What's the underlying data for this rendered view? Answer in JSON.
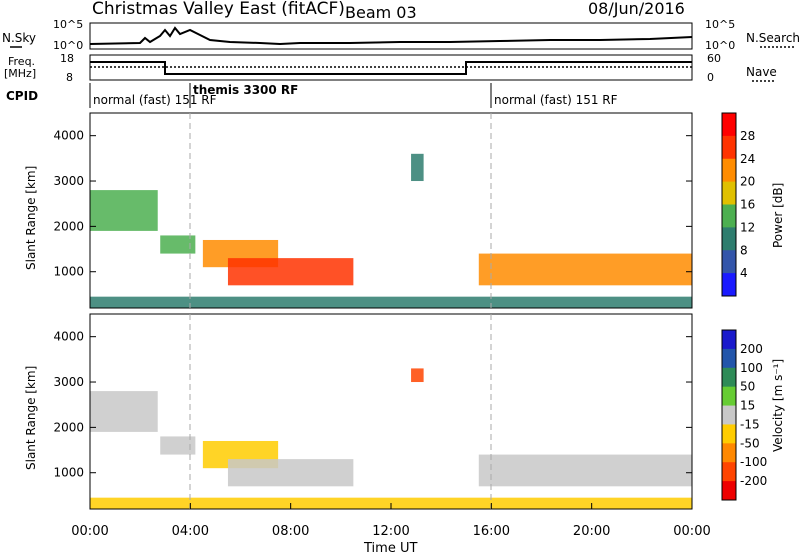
{
  "header": {
    "title": "Christmas Valley East (fitACF)",
    "beam": "Beam 03",
    "date": "08/Jun/2016"
  },
  "panels": {
    "nsky": {
      "label": "N.Sky",
      "ticks": [
        "10^5",
        "10^0"
      ],
      "right_ticks": [
        "10^5",
        "10^0"
      ],
      "right_label": "N.Search"
    },
    "freq": {
      "label_line1": "Freq.",
      "label_line2": "[MHz]",
      "ticks": [
        "18",
        "8"
      ],
      "right_ticks": [
        "60",
        "0"
      ],
      "right_label": "Nave"
    },
    "cpid": {
      "label": "CPID",
      "segments": [
        {
          "label": "normal (fast) 151 RF",
          "start_hour": 0
        },
        {
          "label": "themis 3300 RF",
          "start_hour": 4.0
        },
        {
          "label": "normal (fast) 151 RF",
          "start_hour": 16.0
        }
      ]
    }
  },
  "axes": {
    "ylabel": "Slant Range [km]",
    "xlabel": "Time UT",
    "xticks": [
      "00:00",
      "04:00",
      "08:00",
      "12:00",
      "16:00",
      "20:00",
      "00:00"
    ],
    "yticks": [
      "1000",
      "2000",
      "3000",
      "4000"
    ]
  },
  "colorbars": {
    "power": {
      "label": "Power [dB]",
      "ticks": [
        "4",
        "8",
        "12",
        "16",
        "20",
        "24",
        "28"
      ],
      "colors": [
        "#1a1aff",
        "#3355aa",
        "#2e7d6e",
        "#4caf50",
        "#e0c000",
        "#ff8c00",
        "#ff3300",
        "#ff0000"
      ]
    },
    "velocity": {
      "label": "Velocity [m s⁻¹]",
      "ticks": [
        "200",
        "100",
        "50",
        "15",
        "-15",
        "-50",
        "-100",
        "-200"
      ],
      "colors": [
        "#1a1acc",
        "#2255aa",
        "#2e8b57",
        "#66cc33",
        "#c8c8c8",
        "#ffcc00",
        "#ff8800",
        "#ff4400",
        "#ee0000"
      ]
    }
  },
  "chart_data": [
    {
      "type": "heatmap",
      "title": "Power",
      "xlabel": "Time UT",
      "ylabel": "Slant Range [km]",
      "xlim": [
        0,
        24
      ],
      "ylim": [
        200,
        4500
      ],
      "colorbar_label": "Power [dB]",
      "regions": [
        {
          "t0": 0.0,
          "t1": 2.7,
          "r0": 1900,
          "r1": 2800,
          "value": 14
        },
        {
          "t0": 2.8,
          "t1": 4.2,
          "r0": 1400,
          "r1": 1800,
          "value": 16
        },
        {
          "t0": 4.5,
          "t1": 7.5,
          "r0": 1100,
          "r1": 1700,
          "value": 22
        },
        {
          "t0": 5.5,
          "t1": 10.5,
          "r0": 700,
          "r1": 1300,
          "value": 26
        },
        {
          "t0": 15.5,
          "t1": 24.0,
          "r0": 700,
          "r1": 1400,
          "value": 24
        },
        {
          "t0": 0.0,
          "t1": 24.0,
          "r0": 200,
          "r1": 450,
          "value": 12
        },
        {
          "t0": 12.8,
          "t1": 13.3,
          "r0": 3000,
          "r1": 3600,
          "value": 10
        }
      ]
    },
    {
      "type": "heatmap",
      "title": "Velocity",
      "xlabel": "Time UT",
      "ylabel": "Slant Range [km]",
      "xlim": [
        0,
        24
      ],
      "ylim": [
        200,
        4500
      ],
      "colorbar_label": "Velocity [m s-1]",
      "regions": [
        {
          "t0": 0.0,
          "t1": 2.7,
          "r0": 1900,
          "r1": 2800,
          "value": 0
        },
        {
          "t0": 2.8,
          "t1": 4.2,
          "r0": 1400,
          "r1": 1800,
          "value": -10
        },
        {
          "t0": 4.5,
          "t1": 7.5,
          "r0": 1100,
          "r1": 1700,
          "value": -40
        },
        {
          "t0": 5.5,
          "t1": 10.5,
          "r0": 700,
          "r1": 1300,
          "value": 0
        },
        {
          "t0": 15.5,
          "t1": 24.0,
          "r0": 700,
          "r1": 1400,
          "value": 0
        },
        {
          "t0": 0.0,
          "t1": 24.0,
          "r0": 200,
          "r1": 450,
          "value": -40
        },
        {
          "t0": 12.8,
          "t1": 13.3,
          "r0": 3000,
          "r1": 3300,
          "value": -200
        }
      ]
    }
  ]
}
